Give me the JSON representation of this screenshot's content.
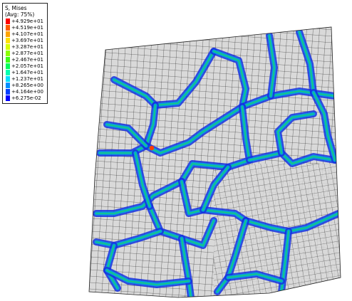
{
  "legend": {
    "title": "S, Mises",
    "subtitle": "(Avg: 75%)",
    "entries": [
      {
        "label": "+4.929e+01",
        "color": "#ff0000"
      },
      {
        "label": "+4.519e+01",
        "color": "#ff5c00"
      },
      {
        "label": "+4.107e+01",
        "color": "#ffa400"
      },
      {
        "label": "+3.697e+01",
        "color": "#ffe000"
      },
      {
        "label": "+3.287e+01",
        "color": "#d8ff00"
      },
      {
        "label": "+2.877e+01",
        "color": "#8cff00"
      },
      {
        "label": "+2.467e+01",
        "color": "#3cff14"
      },
      {
        "label": "+2.057e+01",
        "color": "#00ff5c"
      },
      {
        "label": "+1.647e+01",
        "color": "#00ffb0"
      },
      {
        "label": "+1.237e+01",
        "color": "#00e0ff"
      },
      {
        "label": "+8.265e+00",
        "color": "#0090ff"
      },
      {
        "label": "+4.164e+00",
        "color": "#0040ff"
      },
      {
        "label": "+6.275e-02",
        "color": "#0000ff"
      }
    ]
  },
  "colors": {
    "mesh_fill": "#d9d9d9",
    "mesh_line": "#111111",
    "boundary_high": "#1ed26a",
    "boundary_mid": "#00aadd",
    "boundary_low": "#1530e0",
    "hotspot": "#ff3a00"
  }
}
